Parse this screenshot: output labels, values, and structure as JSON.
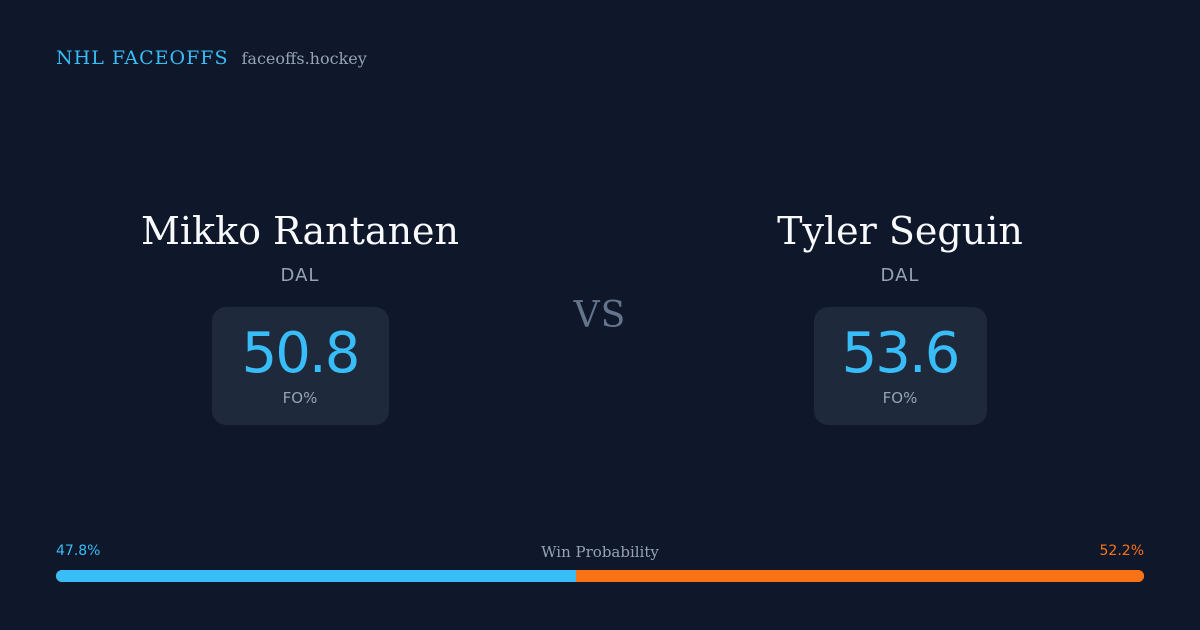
{
  "header": {
    "brand": "NHL FACEOFFS",
    "site": "faceoffs.hockey"
  },
  "players": [
    {
      "name": "Mikko Rantanen",
      "team": "DAL",
      "stat_value": "50.8",
      "stat_label": "FO%"
    },
    {
      "name": "Tyler Seguin",
      "team": "DAL",
      "stat_value": "53.6",
      "stat_label": "FO%"
    }
  ],
  "vs_label": "VS",
  "win_probability": {
    "title": "Win Probability",
    "left_label": "47.8%",
    "right_label": "52.2%",
    "left_value": 47.8,
    "right_value": 52.2
  },
  "colors": {
    "background": "#0f172a",
    "card": "#1e293b",
    "accent_blue": "#38bdf8",
    "accent_orange": "#f97316",
    "muted_text": "#94a3b8",
    "vs_text": "#64748b"
  }
}
